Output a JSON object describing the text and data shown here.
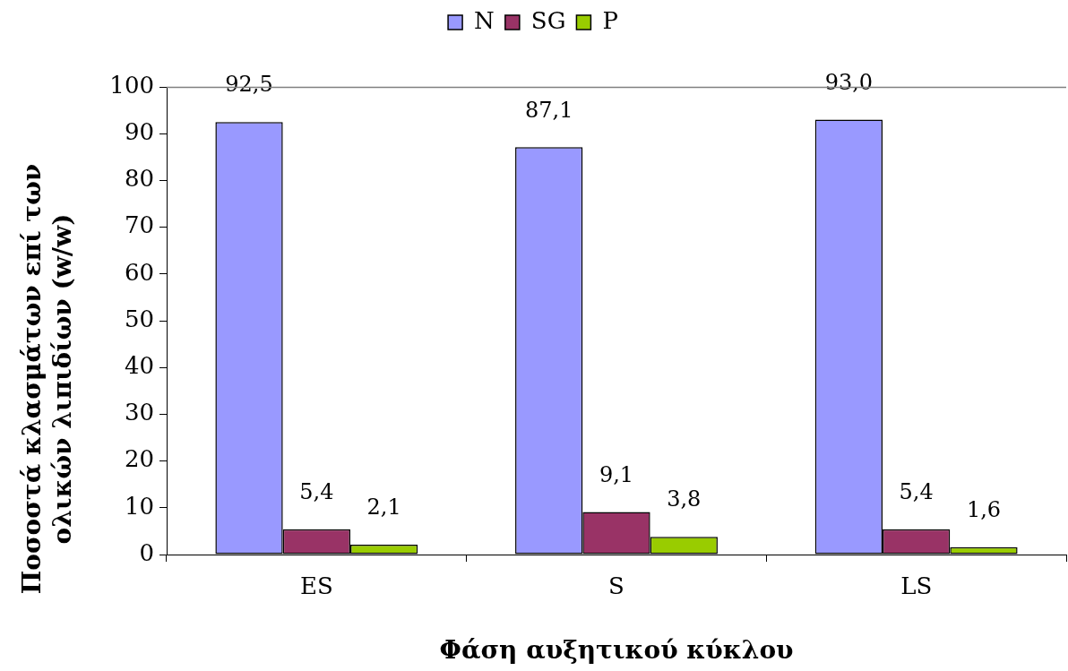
{
  "chart_data": {
    "type": "bar",
    "xlabel": "Φάση αυξητικού κύκλου",
    "ylabel": "Ποσοστά κλασμάτων επί των ολικών λιπιδίων (w/w)",
    "categories": [
      "ES",
      "S",
      "LS"
    ],
    "series": [
      {
        "name": "N",
        "color": "#9999ff",
        "values": [
          92.5,
          87.1,
          93.0
        ],
        "value_labels": [
          "92,5",
          "87,1",
          "93,0"
        ]
      },
      {
        "name": "SG",
        "color": "#993366",
        "values": [
          5.4,
          9.1,
          5.4
        ],
        "value_labels": [
          "5,4",
          "9,1",
          "5,4"
        ]
      },
      {
        "name": "P",
        "color": "#99cc00",
        "values": [
          2.1,
          3.8,
          1.6
        ],
        "value_labels": [
          "2,1",
          "3,8",
          "1,6"
        ]
      }
    ],
    "ylim": [
      0,
      100
    ],
    "yticks": [
      0,
      10,
      20,
      30,
      40,
      50,
      60,
      70,
      80,
      90,
      100
    ],
    "grid": false,
    "legend": "top"
  }
}
